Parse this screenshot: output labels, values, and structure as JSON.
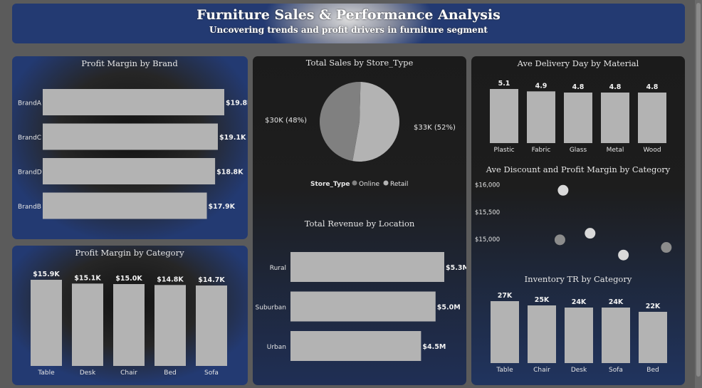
{
  "header": {
    "title": "Furniture Sales & Performance Analysis",
    "subtitle": "Uncovering trends and profit drivers in furniture segment"
  },
  "colors": {
    "bar": "#b3b3b3",
    "online": "#808080",
    "retail": "#b3b3b3",
    "text": "#e6e6e6",
    "panel_dark": "#1d1d1d",
    "panel_blue": "#233a72"
  },
  "chart_data": [
    {
      "id": "brand",
      "type": "bar",
      "orientation": "horizontal",
      "title": "Profit Margin by Brand",
      "categories": [
        "BrandA",
        "BrandC",
        "BrandD",
        "BrandB"
      ],
      "values": [
        19800,
        19100,
        18800,
        17900
      ],
      "labels": [
        "$19.8K",
        "$19.1K",
        "$18.8K",
        "$17.9K"
      ]
    },
    {
      "id": "pie",
      "type": "pie",
      "title": "Total Sales by Store_Type",
      "legend_title": "Store_Type",
      "series": [
        {
          "name": "Online",
          "value": 30000,
          "label": "$30K (48%)"
        },
        {
          "name": "Retail",
          "value": 33000,
          "label": "$33K (52%)"
        }
      ]
    },
    {
      "id": "delivery",
      "type": "bar",
      "title": "Ave Delivery Day by Material",
      "categories": [
        "Plastic",
        "Fabric",
        "Glass",
        "Metal",
        "Wood"
      ],
      "values": [
        5.1,
        4.9,
        4.8,
        4.8,
        4.8
      ],
      "labels": [
        "5.1",
        "4.9",
        "4.8",
        "4.8",
        "4.8"
      ]
    },
    {
      "id": "scatter",
      "type": "scatter",
      "title": "Ave Discount and Profit Margin by Category",
      "yticks": [
        "$16,000",
        "$15,500",
        "$15,000"
      ],
      "ylim": [
        14700,
        16100
      ],
      "points": [
        {
          "x": 0.3,
          "y": 15900
        },
        {
          "x": 0.47,
          "y": 15110
        },
        {
          "x": 0.28,
          "y": 14990
        },
        {
          "x": 0.68,
          "y": 14710
        },
        {
          "x": 0.95,
          "y": 14850
        }
      ]
    },
    {
      "id": "category",
      "type": "bar",
      "title": "Profit Margin by Category",
      "categories": [
        "Table",
        "Desk",
        "Chair",
        "Bed",
        "Sofa"
      ],
      "values": [
        15900,
        15100,
        15000,
        14800,
        14700
      ],
      "labels": [
        "$15.9K",
        "$15.1K",
        "$15.0K",
        "$14.8K",
        "$14.7K"
      ]
    },
    {
      "id": "location",
      "type": "bar",
      "orientation": "horizontal",
      "title": "Total Revenue by Location",
      "categories": [
        "Rural",
        "Suburban",
        "Urban"
      ],
      "values": [
        5300000,
        5000000,
        4500000
      ],
      "labels": [
        "$5.3M",
        "$5.0M",
        "$4.5M"
      ]
    },
    {
      "id": "inventory",
      "type": "bar",
      "title": "Inventory TR by Category",
      "categories": [
        "Table",
        "Chair",
        "Desk",
        "Sofa",
        "Bed"
      ],
      "values": [
        27000,
        25000,
        24000,
        24000,
        22000
      ],
      "labels": [
        "27K",
        "25K",
        "24K",
        "24K",
        "22K"
      ]
    }
  ]
}
